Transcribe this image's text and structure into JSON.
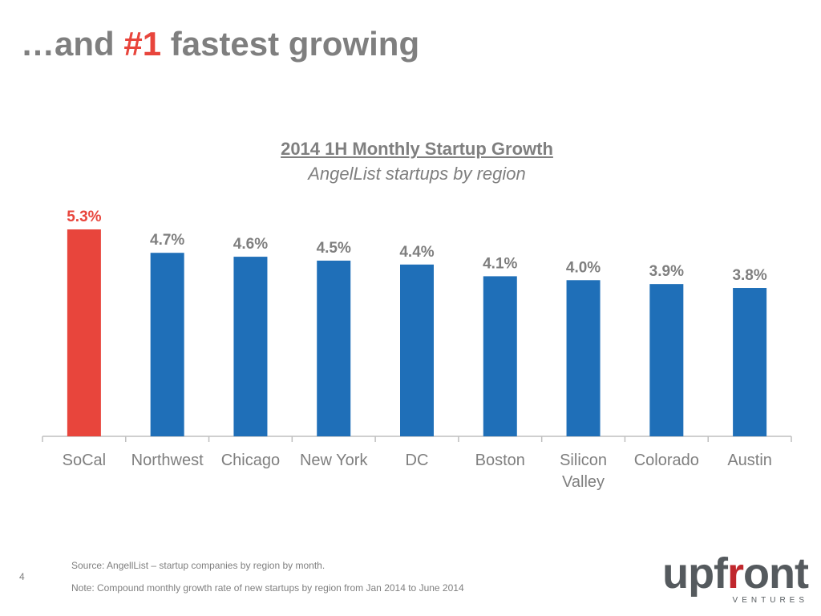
{
  "slide": {
    "title_prefix": "…and ",
    "title_highlight": "#1",
    "title_suffix": " fastest growing",
    "page_number": "4",
    "source": "Source: AngellList – startup companies by region by month.",
    "note": "Note: Compound monthly growth rate of new startups by region from Jan 2014 to June 2014"
  },
  "logo": {
    "word_a": "upf",
    "word_r": "r",
    "word_b": "ont",
    "sub": "VENTURES"
  },
  "colors": {
    "highlight": "#e8453c",
    "bar": "#1f6fb8",
    "text_grey": "#7f7f7f",
    "logo_grey": "#555a5e",
    "logo_red": "#c0272d"
  },
  "chart_data": {
    "type": "bar",
    "title": "2014 1H Monthly Startup Growth",
    "subtitle": "AngelList startups by region",
    "categories": [
      "SoCal",
      "Northwest",
      "Chicago",
      "New York",
      "DC",
      "Boston",
      "Silicon Valley",
      "Colorado",
      "Austin"
    ],
    "values": [
      5.3,
      4.7,
      4.6,
      4.5,
      4.4,
      4.1,
      4.0,
      3.9,
      3.8
    ],
    "value_labels": [
      "5.3%",
      "4.7%",
      "4.6%",
      "4.5%",
      "4.4%",
      "4.1%",
      "4.0%",
      "3.9%",
      "3.8%"
    ],
    "highlight_index": 0,
    "ylim": [
      0,
      5.3
    ],
    "grid": false,
    "legend": "none"
  }
}
